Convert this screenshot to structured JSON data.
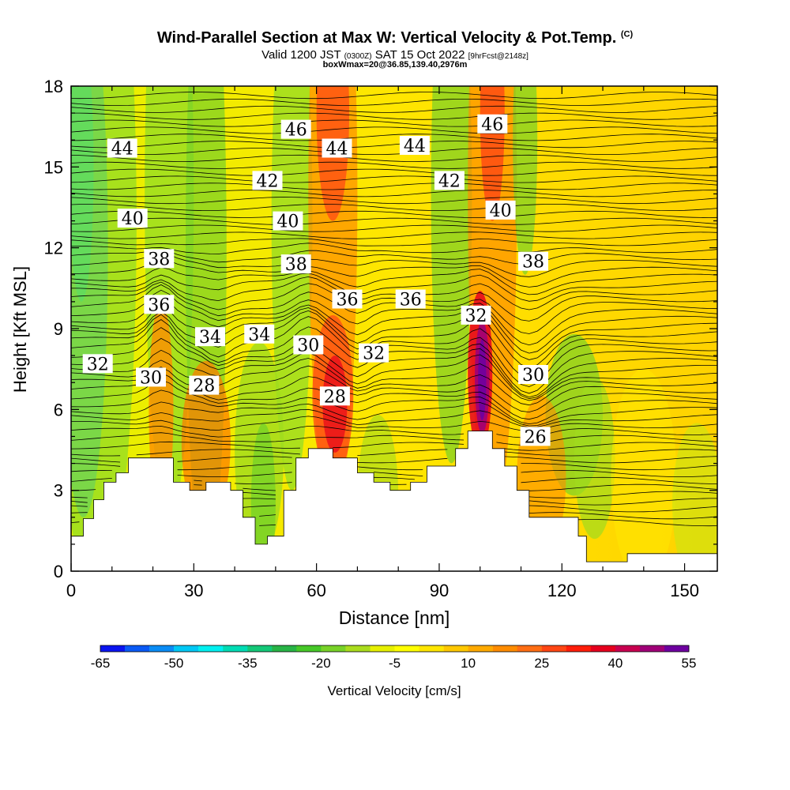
{
  "header": {
    "title": "Wind-Parallel Section at Max W: Vertical Velocity & Pot.Temp.",
    "copyright": "(C)",
    "valid_prefix": "Valid 1200 JST",
    "valid_utc": "(0300Z)",
    "valid_date": "SAT 15 Oct 2022",
    "forecast": "[9hrFcst@2148z]",
    "box_info": "boxWmax=20@36.85,139.40,2976m"
  },
  "chart_data": {
    "type": "heatmap",
    "title": "Wind-Parallel Section at Max W: Vertical Velocity & Pot.Temp.",
    "xlabel": "Distance [nm]",
    "ylabel": "Height [Kft MSL]",
    "xlim": [
      0,
      158
    ],
    "ylim": [
      0,
      18
    ],
    "x_ticks": [
      0,
      30,
      60,
      90,
      120,
      150
    ],
    "y_ticks": [
      0,
      3,
      6,
      9,
      12,
      15,
      18
    ],
    "colorbar": {
      "label": "Vertical Velocity [cm/s]",
      "tick_labels": [
        "-65",
        "-50",
        "-35",
        "-20",
        "-5",
        "10",
        "25",
        "40",
        "55"
      ],
      "colors": [
        "#0a14f0",
        "#0a5af5",
        "#0a8cf5",
        "#00c8f5",
        "#00f0f0",
        "#00dcb4",
        "#14c878",
        "#28b446",
        "#46c828",
        "#78d228",
        "#aadc1e",
        "#e6f000",
        "#ffff00",
        "#ffe600",
        "#ffc800",
        "#ffaa00",
        "#ff8c00",
        "#ff6e14",
        "#ff4614",
        "#ff1e0a",
        "#e6001e",
        "#c80050",
        "#a00078",
        "#6e00a0"
      ]
    },
    "theta_contour_labels": [
      {
        "x": 55,
        "y": 16.4,
        "text": "46"
      },
      {
        "x": 103,
        "y": 16.6,
        "text": "46"
      },
      {
        "x": 12.5,
        "y": 15.7,
        "text": "44"
      },
      {
        "x": 65,
        "y": 15.7,
        "text": "44"
      },
      {
        "x": 84,
        "y": 15.8,
        "text": "44"
      },
      {
        "x": 48,
        "y": 14.5,
        "text": "42"
      },
      {
        "x": 92.5,
        "y": 14.5,
        "text": "42"
      },
      {
        "x": 15,
        "y": 13.1,
        "text": "40"
      },
      {
        "x": 53,
        "y": 13.0,
        "text": "40"
      },
      {
        "x": 105,
        "y": 13.4,
        "text": "40"
      },
      {
        "x": 21.5,
        "y": 11.6,
        "text": "38"
      },
      {
        "x": 55,
        "y": 11.4,
        "text": "38"
      },
      {
        "x": 113,
        "y": 11.5,
        "text": "38"
      },
      {
        "x": 21.5,
        "y": 9.9,
        "text": "36"
      },
      {
        "x": 67.5,
        "y": 10.1,
        "text": "36"
      },
      {
        "x": 83,
        "y": 10.1,
        "text": "36"
      },
      {
        "x": 99,
        "y": 9.5,
        "text": "32"
      },
      {
        "x": 34,
        "y": 8.7,
        "text": "34"
      },
      {
        "x": 46,
        "y": 8.8,
        "text": "34"
      },
      {
        "x": 58,
        "y": 8.4,
        "text": "30"
      },
      {
        "x": 74,
        "y": 8.1,
        "text": "32"
      },
      {
        "x": 6.5,
        "y": 7.7,
        "text": "32"
      },
      {
        "x": 19.5,
        "y": 7.2,
        "text": "30"
      },
      {
        "x": 32.5,
        "y": 6.9,
        "text": "28"
      },
      {
        "x": 64.5,
        "y": 6.5,
        "text": "28"
      },
      {
        "x": 113,
        "y": 7.3,
        "text": "30"
      },
      {
        "x": 113.5,
        "y": 5.0,
        "text": "26"
      }
    ],
    "terrain": [
      [
        0,
        1.3
      ],
      [
        3,
        1.3
      ],
      [
        3,
        1.95
      ],
      [
        5.5,
        1.95
      ],
      [
        5.5,
        2.65
      ],
      [
        8,
        2.65
      ],
      [
        8,
        3.3
      ],
      [
        11,
        3.3
      ],
      [
        11,
        3.65
      ],
      [
        14,
        3.65
      ],
      [
        14,
        4.2
      ],
      [
        25,
        4.2
      ],
      [
        25,
        3.3
      ],
      [
        29,
        3.3
      ],
      [
        29,
        3.0
      ],
      [
        33,
        3.0
      ],
      [
        33,
        3.3
      ],
      [
        39,
        3.3
      ],
      [
        39,
        3.0
      ],
      [
        42,
        3.0
      ],
      [
        42,
        2.0
      ],
      [
        45,
        2.0
      ],
      [
        45,
        1.0
      ],
      [
        48,
        1.0
      ],
      [
        48,
        1.3
      ],
      [
        52,
        1.3
      ],
      [
        52,
        3.0
      ],
      [
        55,
        3.0
      ],
      [
        55,
        4.2
      ],
      [
        58,
        4.2
      ],
      [
        58,
        4.55
      ],
      [
        64,
        4.55
      ],
      [
        64,
        4.2
      ],
      [
        70,
        4.2
      ],
      [
        70,
        3.65
      ],
      [
        74,
        3.65
      ],
      [
        74,
        3.3
      ],
      [
        78,
        3.3
      ],
      [
        78,
        3.0
      ],
      [
        83,
        3.0
      ],
      [
        83,
        3.3
      ],
      [
        87,
        3.3
      ],
      [
        87,
        3.9
      ],
      [
        94,
        3.9
      ],
      [
        94,
        4.55
      ],
      [
        97,
        4.55
      ],
      [
        97,
        5.2
      ],
      [
        103,
        5.2
      ],
      [
        103,
        4.55
      ],
      [
        106,
        4.55
      ],
      [
        106,
        3.9
      ],
      [
        109,
        3.9
      ],
      [
        109,
        3.0
      ],
      [
        112,
        3.0
      ],
      [
        112,
        2.0
      ],
      [
        124,
        2.0
      ],
      [
        124,
        1.3
      ],
      [
        126,
        1.3
      ],
      [
        126,
        0.35
      ],
      [
        136,
        0.35
      ],
      [
        136,
        0.65
      ],
      [
        158,
        0.65
      ]
    ]
  }
}
